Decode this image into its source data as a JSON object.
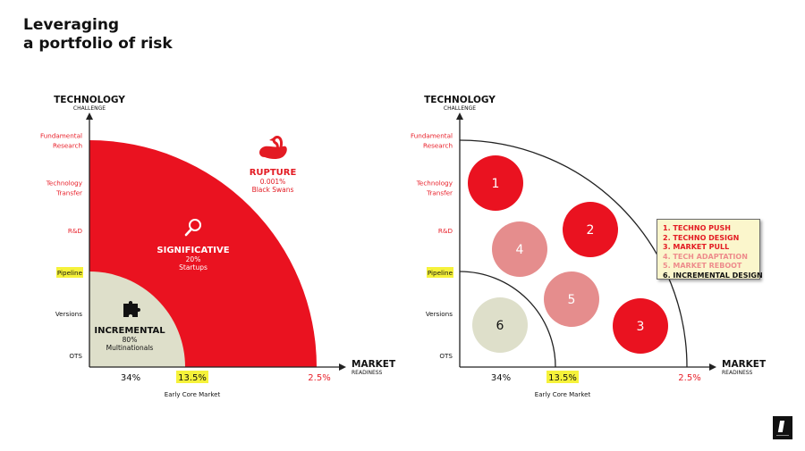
{
  "title": {
    "line1": "Leveraging",
    "line2": "a portfolio of risk"
  },
  "axes": {
    "y_title": "TECHNOLOGY",
    "y_subtitle": "CHALLENGE",
    "x_title": "MARKET",
    "x_subtitle": "READINESS",
    "y_levels": [
      {
        "lines": [
          "Fundamental",
          "Research"
        ],
        "color": "#e8202a"
      },
      {
        "lines": [
          "Technology",
          "Transfer"
        ],
        "color": "#e8202a"
      },
      {
        "lines": [
          "R&D"
        ],
        "color": "#e8202a"
      },
      {
        "lines": [
          "Pipeline"
        ],
        "color": "#111111",
        "highlight": true
      },
      {
        "lines": [
          "Versions"
        ],
        "color": "#111111"
      },
      {
        "lines": [
          "OTS"
        ],
        "color": "#111111"
      }
    ],
    "x_labels": [
      {
        "text": "34%",
        "color": "#111111"
      },
      {
        "text": "13.5%",
        "color": "#111111",
        "highlight": true
      },
      {
        "text": "2.5%",
        "color": "#e8202a"
      }
    ],
    "x_caption": "Early Core Market"
  },
  "zones": {
    "rupture": {
      "name": "RUPTURE",
      "pct": "0.001%",
      "desc": "Black Swans",
      "icon": "swan-icon"
    },
    "significative": {
      "name": "SIGNIFICATIVE",
      "pct": "20%",
      "desc": "Startups",
      "icon": "magnifier-icon"
    },
    "incremental": {
      "name": "INCREMENTAL",
      "pct": "80%",
      "desc": "Multinationals",
      "icon": "puzzle-icon"
    }
  },
  "bubbles": [
    {
      "label": "1",
      "color": "#ea1220"
    },
    {
      "label": "2",
      "color": "#ea1220"
    },
    {
      "label": "3",
      "color": "#ea1220"
    },
    {
      "label": "4",
      "color": "#e58d8d"
    },
    {
      "label": "5",
      "color": "#e58d8d"
    },
    {
      "label": "6",
      "color": "#dedfca"
    }
  ],
  "legend": [
    {
      "text": "1. TECHNO PUSH",
      "color": "#e31b23"
    },
    {
      "text": "2. TECHNO DESIGN",
      "color": "#e31b23"
    },
    {
      "text": "3. MARKET PULL",
      "color": "#e31b23"
    },
    {
      "text": "4. TECH ADAPTATION",
      "color": "#ee8c8c"
    },
    {
      "text": "5. MARKET REBOOT",
      "color": "#ee8c8c"
    },
    {
      "text": "6. INCREMENTAL DESIGN",
      "color": "#111111"
    }
  ],
  "colors": {
    "red": "#ea1220",
    "beige": "#dedfca",
    "highlight": "#f6f23a",
    "axis": "#222222",
    "white": "#ffffff"
  }
}
